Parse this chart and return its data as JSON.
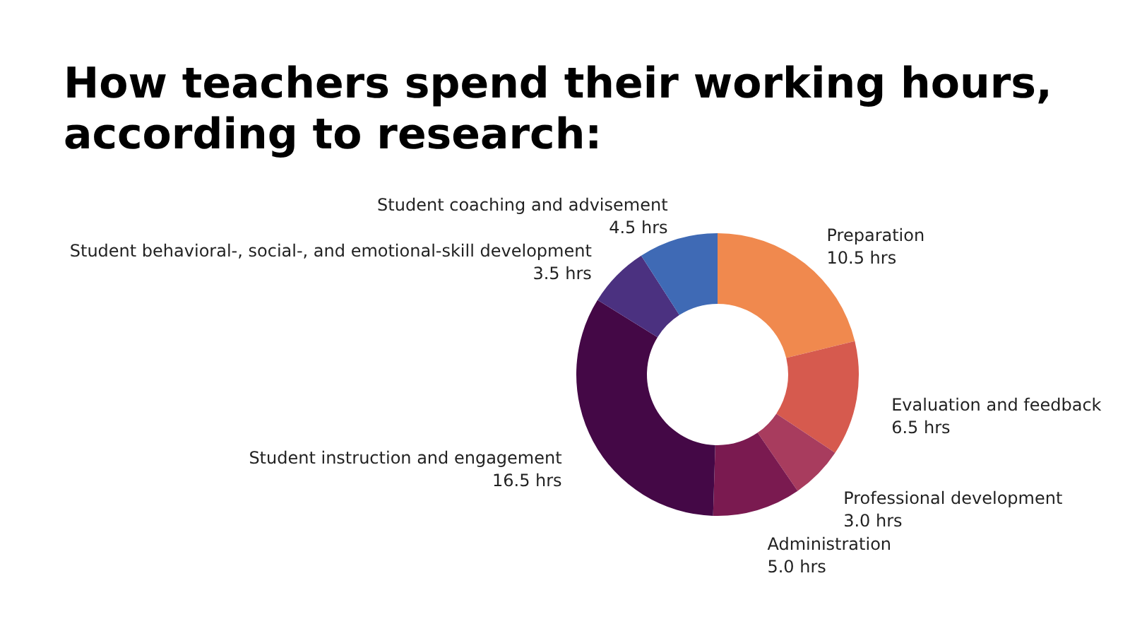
{
  "chart_data": {
    "type": "donut",
    "title": "How teachers spend their working hours, according to research:",
    "categories": [
      "Preparation",
      "Evaluation and feedback",
      "Professional development",
      "Administration",
      "Student instruction and engagement",
      "Student behavioral-, social-, and emotional-skill development",
      "Student coaching and advisement"
    ],
    "values": [
      10.5,
      6.5,
      3.0,
      5.0,
      16.5,
      3.5,
      4.5
    ],
    "value_labels": [
      "10.5 hrs",
      "6.5 hrs",
      "3.0 hrs",
      "5.0 hrs",
      "16.5 hrs",
      "3.5 hrs",
      "4.5 hrs"
    ],
    "colors": [
      "#f0894e",
      "#d65a4e",
      "#a83c5e",
      "#7a1a50",
      "#440846",
      "#4b3180",
      "#3f6ab5"
    ],
    "legend": false
  }
}
